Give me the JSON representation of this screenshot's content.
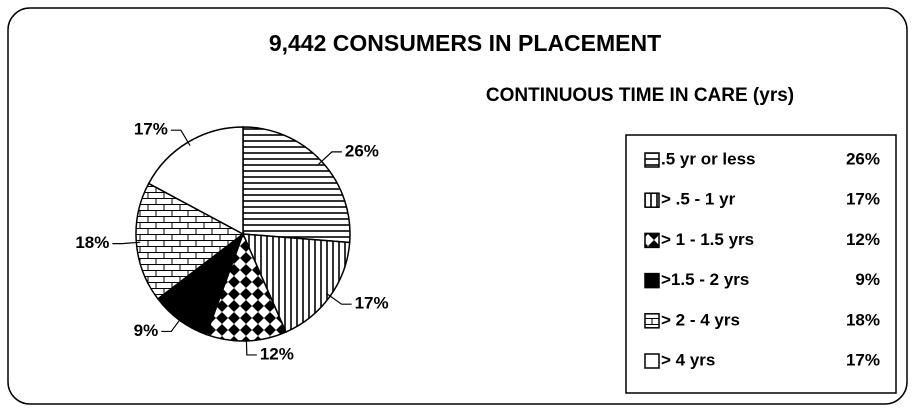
{
  "chart_data": {
    "type": "pie",
    "title": "9,442 CONSUMERS IN PLACEMENT",
    "subtitle": "CONTINUOUS TIME IN CARE (yrs)",
    "categories": [
      ".5 yr or less",
      "> .5 - 1 yr",
      "> 1 - 1.5 yrs",
      ">1.5 - 2 yrs",
      "> 2 - 4 yrs",
      "> 4 yrs"
    ],
    "values": [
      26,
      17,
      12,
      9,
      18,
      17
    ],
    "value_labels": [
      "26%",
      "17%",
      "12%",
      "9%",
      "18%",
      "17%"
    ],
    "patterns": [
      "horizontal",
      "vertical",
      "checker",
      "solid",
      "brick",
      "none"
    ],
    "legend": "right"
  }
}
